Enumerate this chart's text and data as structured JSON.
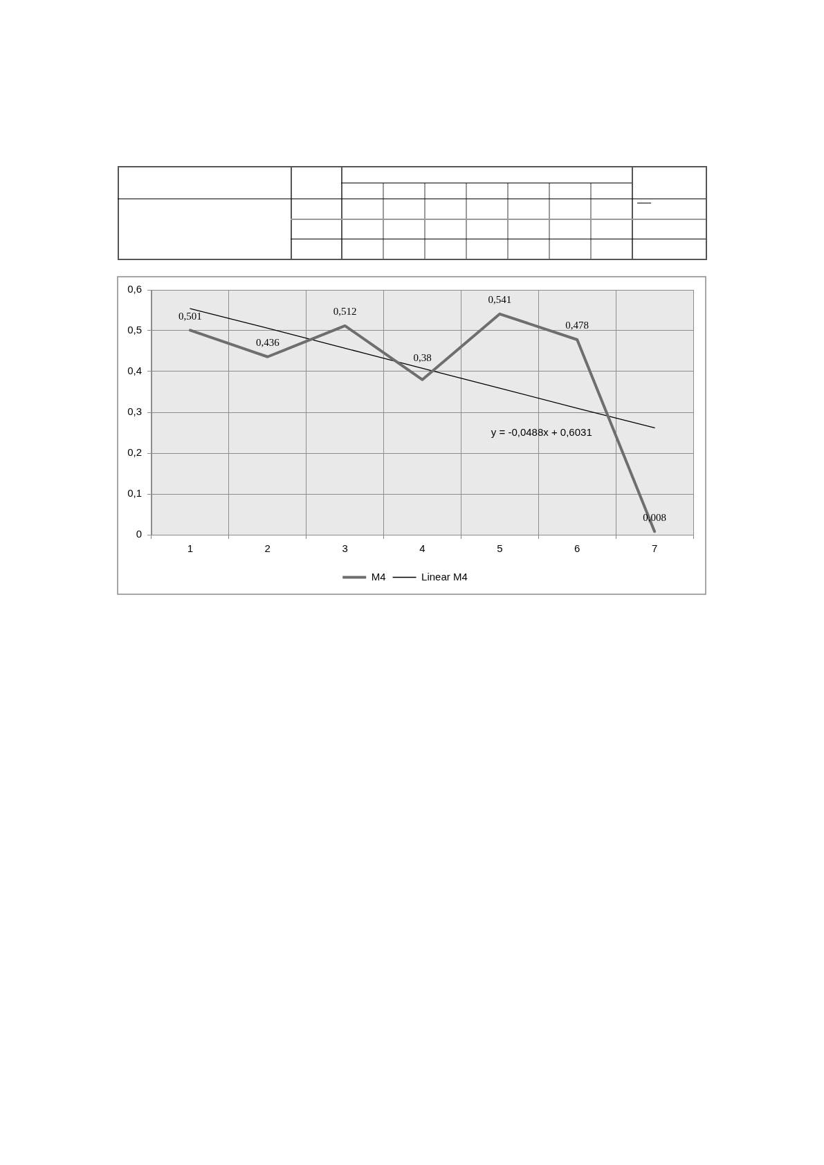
{
  "chart_data": {
    "type": "line",
    "categories": [
      "1",
      "2",
      "3",
      "4",
      "5",
      "6",
      "7"
    ],
    "series": [
      {
        "name": "M4",
        "color": "#6e6e6e",
        "values": [
          0.501,
          0.436,
          0.512,
          0.38,
          0.541,
          0.478,
          0.008
        ],
        "value_labels": [
          "0,501",
          "0,436",
          "0,512",
          "0,38",
          "0,541",
          "0,478",
          "0,008"
        ]
      },
      {
        "name": "Linear M4",
        "type": "line",
        "color": "#000000",
        "values": [
          0.554,
          0.506,
          0.457,
          0.408,
          0.359,
          0.31,
          0.262
        ]
      }
    ],
    "ylim": [
      0,
      0.6
    ],
    "yticks": [
      0,
      {
        "value": 0.1,
        "label": "0,1"
      },
      {
        "value": 0.2,
        "label": "0,2"
      },
      {
        "value": 0.3,
        "label": "0,3"
      },
      {
        "value": 0.4,
        "label": "0,4"
      },
      {
        "value": 0.5,
        "label": "0,5"
      },
      {
        "value": 0.6,
        "label": "0,6"
      }
    ],
    "grid": true,
    "legend": "bottom",
    "marker": "none",
    "line_style": "solid",
    "annotations": [
      "y = -0,0488x + 0,6031"
    ]
  }
}
